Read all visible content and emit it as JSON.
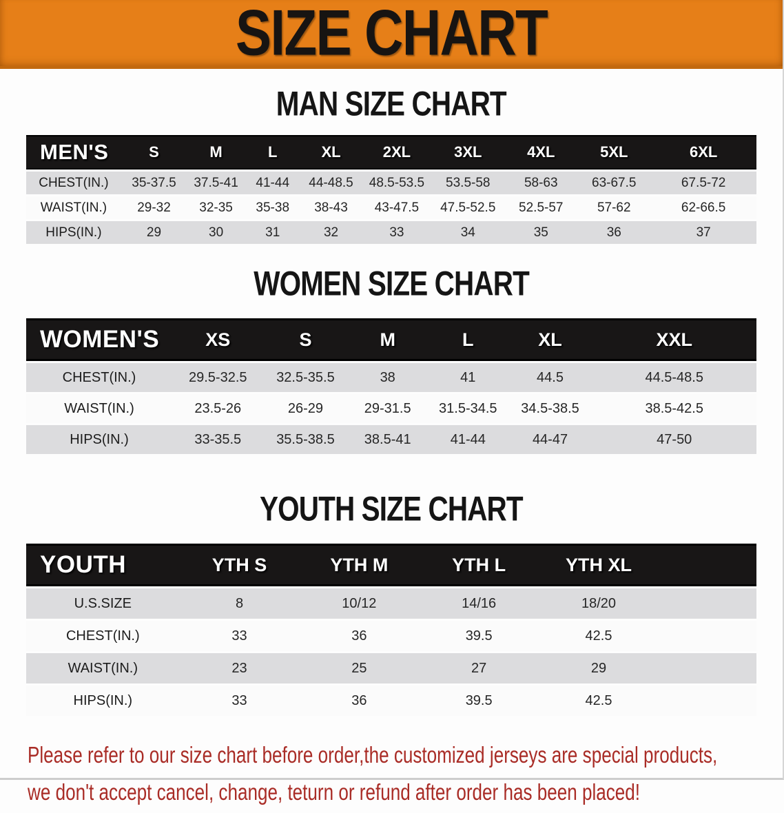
{
  "banner": {
    "title": "SIZE CHART"
  },
  "colors": {
    "banner_orange": "#E67F18",
    "banner_border": "#C2690F",
    "header_black": "#181616",
    "row_gray": "#DCDCDE",
    "row_white": "#FBFBFB",
    "footer_red": "#A92C26"
  },
  "men_chart": {
    "title": "MAN SIZE CHART",
    "header_label": "MEN'S",
    "columns": [
      "S",
      "M",
      "L",
      "XL",
      "2XL",
      "3XL",
      "4XL",
      "5XL",
      "6XL"
    ],
    "rows": [
      {
        "label": "CHEST(IN.)",
        "values": [
          "35-37.5",
          "37.5-41",
          "41-44",
          "44-48.5",
          "48.5-53.5",
          "53.5-58",
          "58-63",
          "63-67.5",
          "67.5-72"
        ]
      },
      {
        "label": "WAIST(IN.)",
        "values": [
          "29-32",
          "32-35",
          "35-38",
          "38-43",
          "43-47.5",
          "47.5-52.5",
          "52.5-57",
          "57-62",
          "62-66.5"
        ]
      },
      {
        "label": "HIPS(IN.)",
        "values": [
          "29",
          "30",
          "31",
          "32",
          "33",
          "34",
          "35",
          "36",
          "37"
        ]
      }
    ]
  },
  "women_chart": {
    "title": "WOMEN SIZE CHART",
    "header_label": "WOMEN'S",
    "columns": [
      "XS",
      "S",
      "M",
      "L",
      "XL",
      "XXL"
    ],
    "rows": [
      {
        "label": "CHEST(IN.)",
        "values": [
          "29.5-32.5",
          "32.5-35.5",
          "38",
          "41",
          "44.5",
          "44.5-48.5"
        ]
      },
      {
        "label": "WAIST(IN.)",
        "values": [
          "23.5-26",
          "26-29",
          "29-31.5",
          "31.5-34.5",
          "34.5-38.5",
          "38.5-42.5"
        ]
      },
      {
        "label": "HIPS(IN.)",
        "values": [
          "33-35.5",
          "35.5-38.5",
          "38.5-41",
          "41-44",
          "44-47",
          "47-50"
        ]
      }
    ]
  },
  "youth_chart": {
    "title": "YOUTH SIZE CHART",
    "header_label": "YOUTH",
    "columns": [
      "YTH S",
      "YTH M",
      "YTH L",
      "YTH XL"
    ],
    "rows": [
      {
        "label": "U.S.SIZE",
        "values": [
          "8",
          "10/12",
          "14/16",
          "18/20"
        ]
      },
      {
        "label": "CHEST(IN.)",
        "values": [
          "33",
          "36",
          "39.5",
          "42.5"
        ]
      },
      {
        "label": "WAIST(IN.)",
        "values": [
          "23",
          "25",
          "27",
          "29"
        ]
      },
      {
        "label": "HIPS(IN.)",
        "values": [
          "33",
          "36",
          "39.5",
          "42.5"
        ]
      }
    ]
  },
  "footer": {
    "line1": "Please refer to our size chart before order,the customized jerseys are special products,",
    "line2": "we don't accept cancel, change, teturn or refund after order has been placed!"
  }
}
